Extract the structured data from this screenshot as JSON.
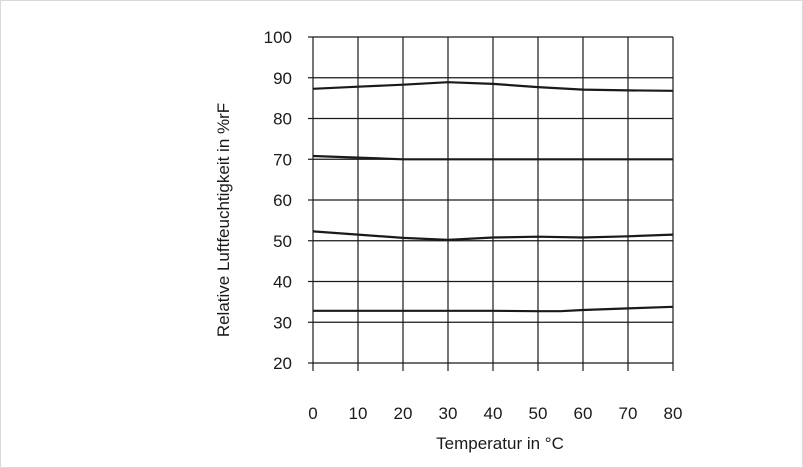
{
  "chart_data": {
    "type": "line",
    "xlabel": "Temperatur in °C",
    "ylabel": "Relative Luftfeuchtigkeit in %rF",
    "xlim": [
      0,
      80
    ],
    "ylim": [
      20,
      100
    ],
    "x_ticks": [
      0,
      10,
      20,
      30,
      40,
      50,
      60,
      70,
      80
    ],
    "y_ticks": [
      20,
      30,
      40,
      50,
      60,
      70,
      80,
      90,
      100
    ],
    "grid": true,
    "series": [
      {
        "x": [
          0,
          10,
          20,
          30,
          40,
          50,
          60,
          70,
          80
        ],
        "y": [
          87.3,
          87.8,
          88.3,
          88.9,
          88.5,
          87.7,
          87.1,
          86.9,
          86.8
        ]
      },
      {
        "x": [
          0,
          10,
          20,
          30,
          40,
          50,
          60,
          70,
          80
        ],
        "y": [
          70.8,
          70.4,
          70,
          70,
          70,
          70,
          70,
          70,
          70
        ]
      },
      {
        "x": [
          0,
          10,
          20,
          30,
          40,
          50,
          60,
          70,
          80
        ],
        "y": [
          52.3,
          51.5,
          50.7,
          50.2,
          50.8,
          51,
          50.8,
          51.1,
          51.5
        ]
      },
      {
        "x": [
          0,
          10,
          20,
          30,
          40,
          50,
          55,
          60,
          70,
          80
        ],
        "y": [
          32.8,
          32.8,
          32.8,
          32.8,
          32.8,
          32.7,
          32.7,
          33,
          33.4,
          33.8
        ]
      }
    ],
    "colors": {
      "line": "#1a1a1a",
      "grid": "#1a1a1a",
      "border": "#d9d9d9"
    }
  }
}
